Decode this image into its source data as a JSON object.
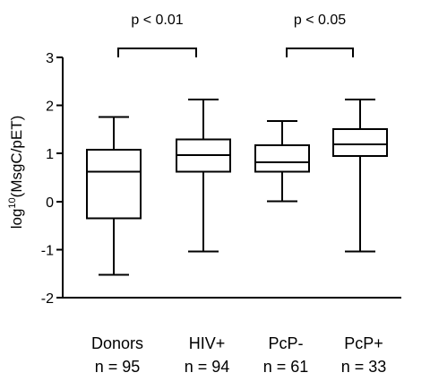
{
  "chart_data": {
    "type": "box",
    "ylabel_parts": [
      "log",
      "10",
      "(MsgC/pET)"
    ],
    "ylim": [
      -2,
      3
    ],
    "yticks": [
      -2,
      -1,
      0,
      1,
      2,
      3
    ],
    "categories": [
      "Donors",
      "HIV+",
      "PcP-",
      "PcP+"
    ],
    "counts": [
      "n = 95",
      "n = 94",
      "n = 61",
      "n = 33"
    ],
    "boxes": [
      {
        "min": -1.52,
        "q1": -0.35,
        "median": 0.62,
        "q3": 1.08,
        "max": 1.76
      },
      {
        "min": -1.04,
        "q1": 0.62,
        "median": 0.97,
        "q3": 1.29,
        "max": 2.12
      },
      {
        "min": 0.01,
        "q1": 0.62,
        "median": 0.82,
        "q3": 1.17,
        "max": 1.68
      },
      {
        "min": -1.04,
        "q1": 0.95,
        "median": 1.19,
        "q3": 1.51,
        "max": 2.12
      }
    ],
    "comparisons": [
      {
        "from": 0,
        "to": 1,
        "label": "p < 0.01"
      },
      {
        "from": 2,
        "to": 3,
        "label": "p < 0.05"
      }
    ],
    "grid": false,
    "legend": "none"
  }
}
